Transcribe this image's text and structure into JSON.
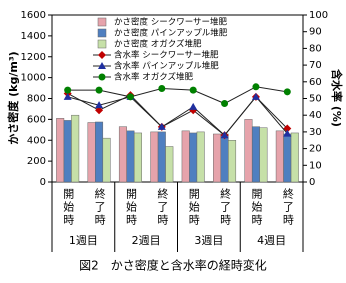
{
  "chart_data": {
    "type": "bar",
    "caption": "図2　かさ密度と含水率の経時変化",
    "y_label": "かさ密度 (kg/m³)",
    "y2_label": "含水率 (%)",
    "categories": [
      "開始時",
      "終了時",
      "開始時",
      "終了時",
      "開始時",
      "終了時",
      "開始時",
      "終了時"
    ],
    "groups": [
      "1週目",
      "2週目",
      "3週目",
      "4週目"
    ],
    "ylim": [
      0,
      1600
    ],
    "yticks": [
      0,
      200,
      400,
      600,
      800,
      1000,
      1200,
      1400,
      1600
    ],
    "y2lim": [
      0,
      100
    ],
    "y2ticks": [
      0,
      10,
      20,
      30,
      40,
      50,
      60,
      70,
      80,
      90,
      100
    ],
    "series": [
      {
        "name": "かさ密度 シークワーサー堆肥",
        "type": "bar",
        "color": "#e6a3ab",
        "values": [
          610,
          570,
          530,
          480,
          490,
          460,
          600,
          490
        ]
      },
      {
        "name": "かさ密度 パインアップル堆肥",
        "type": "bar",
        "color": "#4f7fc0",
        "values": [
          590,
          575,
          490,
          480,
          470,
          460,
          530,
          460
        ]
      },
      {
        "name": "かさ密度 オガクズ堆肥",
        "type": "bar",
        "color": "#c6e0a8",
        "values": [
          640,
          420,
          470,
          340,
          480,
          400,
          520,
          470
        ]
      },
      {
        "name": "含水率 シークワーサー堆肥",
        "type": "line",
        "axis": "y2",
        "color": "#c00000",
        "marker": "diamond",
        "values": [
          53,
          43,
          52,
          33,
          43,
          28,
          51,
          32
        ]
      },
      {
        "name": "含水率 パインアップル堆肥",
        "type": "line",
        "axis": "y2",
        "color": "#1f2f9f",
        "marker": "triangle",
        "values": [
          51,
          46,
          51,
          33,
          45,
          28,
          51,
          29
        ]
      },
      {
        "name": "含水率 オガクズ堆肥",
        "type": "line",
        "axis": "y2",
        "color": "#008000",
        "marker": "circle",
        "values": [
          55,
          55,
          51,
          56,
          55,
          47,
          57,
          54
        ]
      }
    ]
  }
}
